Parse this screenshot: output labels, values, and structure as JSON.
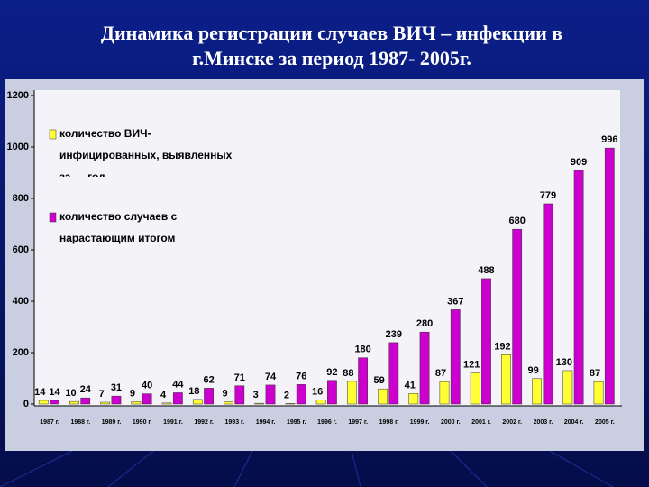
{
  "chart_data": {
    "type": "bar",
    "title_lines": [
      "Динамика регистрации случаев ВИЧ – инфекции в",
      "г.Минске   за период   1987- 2005г."
    ],
    "categories": [
      "1987 г.",
      "1988 г.",
      "1989 г.",
      "1990 г.",
      "1991 г.",
      "1992 г.",
      "1993 г.",
      "1994 г.",
      "1995 г.",
      "1996 г.",
      "1997 г.",
      "1998 г.",
      "1999 г.",
      "2000 г.",
      "2001 г.",
      "2002 г.",
      "2003 г.",
      "2004 г.",
      "2005 г."
    ],
    "series": [
      {
        "name": "количество ВИЧ-инфицированных, выявленных за … год",
        "color": "#ffff33",
        "values": [
          14,
          10,
          7,
          9,
          4,
          18,
          9,
          3,
          2,
          16,
          88,
          59,
          41,
          87,
          121,
          192,
          99,
          130,
          87
        ]
      },
      {
        "name": "количество случаев с нарастающим итогом",
        "color": "#cc00cc",
        "values": [
          14,
          24,
          31,
          40,
          44,
          62,
          71,
          74,
          76,
          92,
          180,
          239,
          280,
          367,
          488,
          680,
          779,
          909,
          996
        ]
      }
    ],
    "ylim": [
      0,
      1200
    ],
    "yticks": [
      0,
      200,
      400,
      600,
      800,
      1000,
      1200
    ],
    "grid": false
  }
}
